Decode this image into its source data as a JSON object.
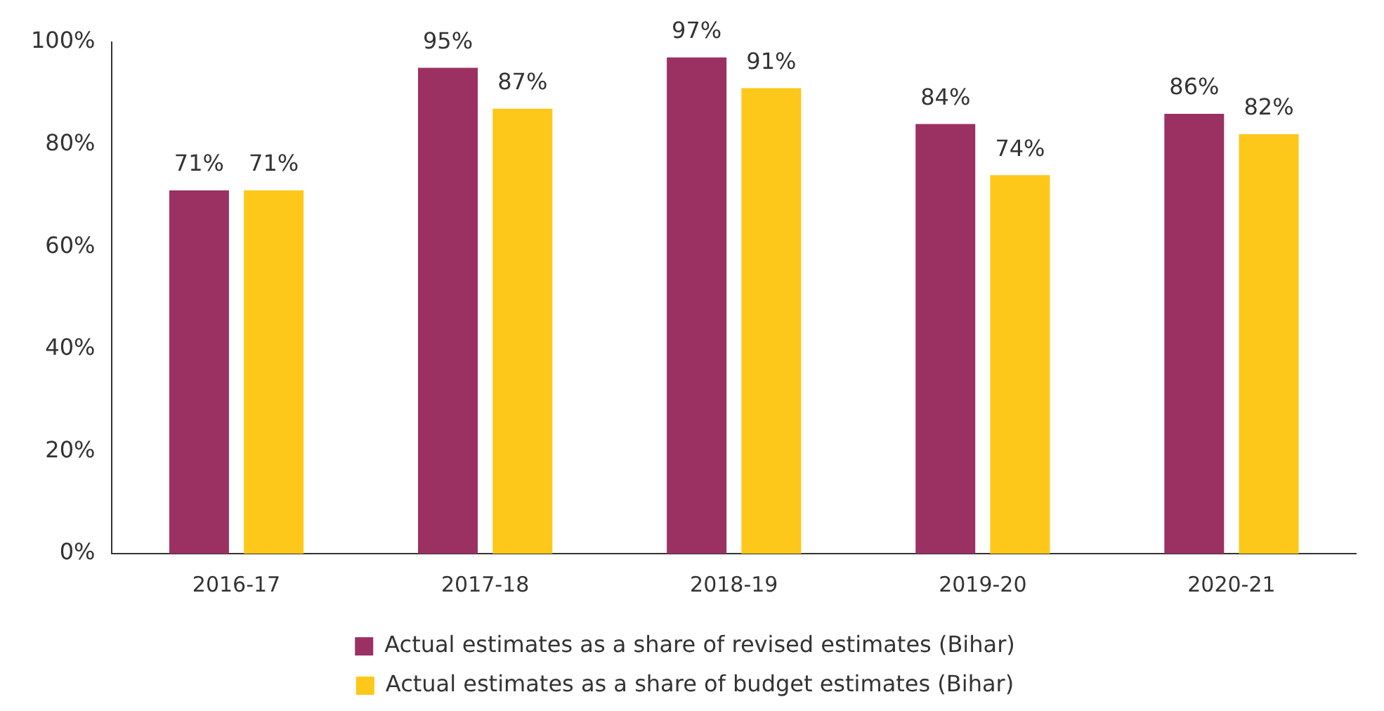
{
  "chart_data": {
    "type": "bar",
    "categories": [
      "2016-17",
      "2017-18",
      "2018-19",
      "2019-20",
      "2020-21"
    ],
    "series": [
      {
        "name": "Actual estimates as a share of revised estimates (Bihar)",
        "color": "#9b3162",
        "values": [
          71,
          95,
          97,
          84,
          86
        ],
        "value_labels": [
          "71%",
          "95%",
          "97%",
          "84%",
          "86%"
        ]
      },
      {
        "name": "Actual estimates as a share of budget estimates (Bihar)",
        "color": "#fdc819",
        "values": [
          71,
          87,
          91,
          74,
          82
        ],
        "value_labels": [
          "71%",
          "87%",
          "91%",
          "74%",
          "82%"
        ]
      }
    ],
    "ylim": [
      0,
      100
    ],
    "yticks": [
      {
        "value": 0,
        "label": "0%"
      },
      {
        "value": 20,
        "label": "20%"
      },
      {
        "value": 40,
        "label": "40%"
      },
      {
        "value": 60,
        "label": "60%"
      },
      {
        "value": 80,
        "label": "80%"
      },
      {
        "value": 100,
        "label": "100%"
      }
    ],
    "grid": false,
    "legend": "bottom"
  }
}
